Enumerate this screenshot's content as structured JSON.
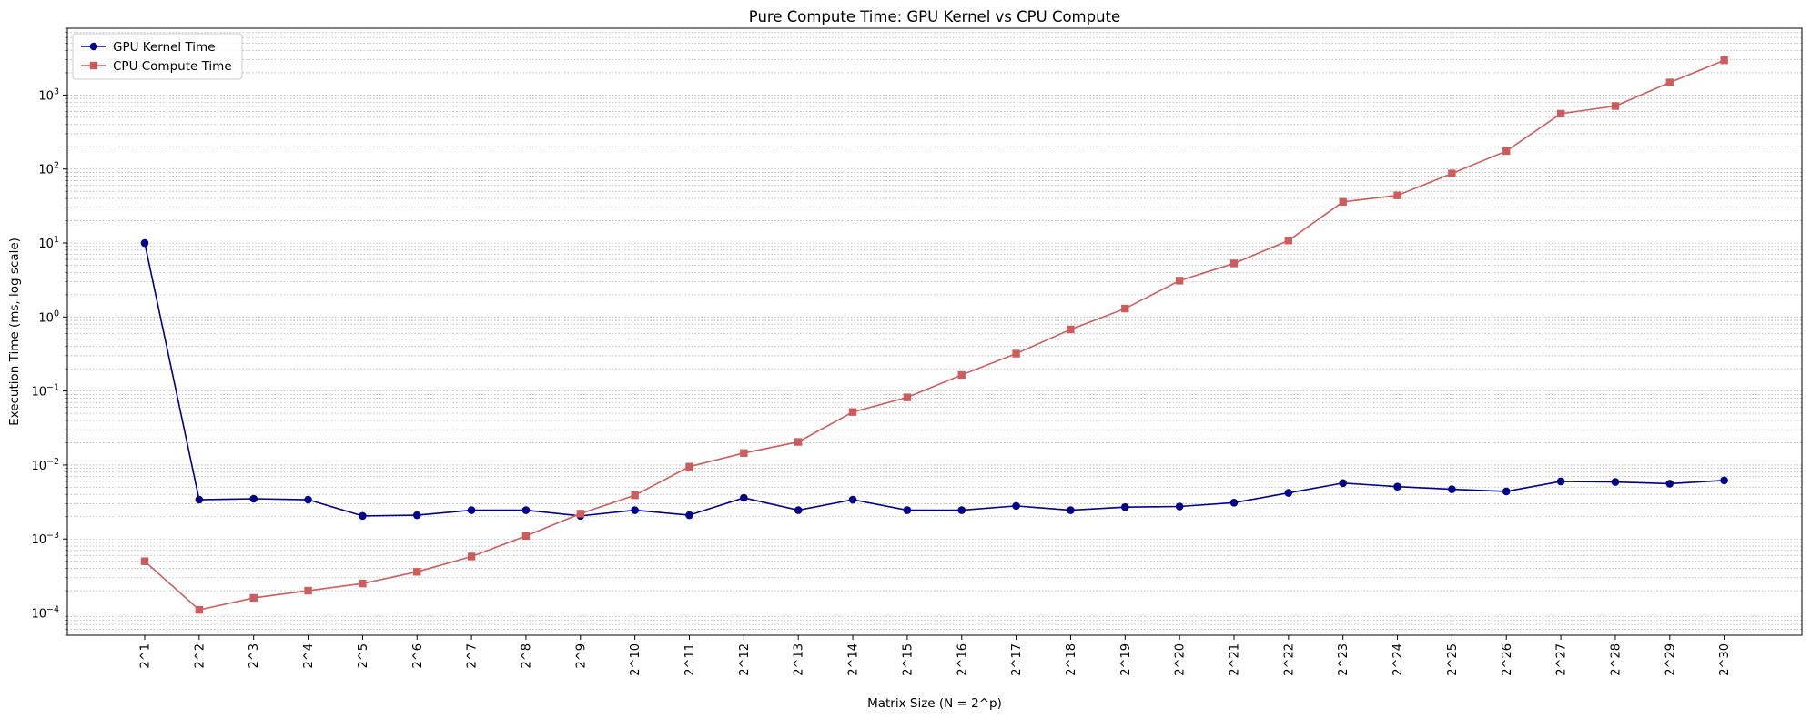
{
  "chart_data": {
    "type": "line",
    "title": "Pure Compute Time: GPU Kernel vs CPU Compute",
    "xlabel": "Matrix Size (N = 2^p)",
    "ylabel": "Execution Time (ms, log scale)",
    "yscale": "log",
    "ylim": [
      5e-05,
      8000
    ],
    "grid": true,
    "legend_position": "top-left",
    "categories": [
      "2^1",
      "2^2",
      "2^3",
      "2^4",
      "2^5",
      "2^6",
      "2^7",
      "2^8",
      "2^9",
      "2^10",
      "2^11",
      "2^12",
      "2^13",
      "2^14",
      "2^15",
      "2^16",
      "2^17",
      "2^18",
      "2^19",
      "2^20",
      "2^21",
      "2^22",
      "2^23",
      "2^24",
      "2^25",
      "2^26",
      "2^27",
      "2^28",
      "2^29",
      "2^30"
    ],
    "y_ticks": [
      {
        "value": 0.0001,
        "base": "10",
        "exp": "−4"
      },
      {
        "value": 0.001,
        "base": "10",
        "exp": "−3"
      },
      {
        "value": 0.01,
        "base": "10",
        "exp": "−2"
      },
      {
        "value": 0.1,
        "base": "10",
        "exp": "−1"
      },
      {
        "value": 1,
        "base": "10",
        "exp": "0"
      },
      {
        "value": 10,
        "base": "10",
        "exp": "1"
      },
      {
        "value": 100,
        "base": "10",
        "exp": "2"
      },
      {
        "value": 1000,
        "base": "10",
        "exp": "3"
      }
    ],
    "series": [
      {
        "name": "GPU Kernel Time",
        "color": "#00008b",
        "marker": "circle",
        "values": [
          10.0,
          0.0034,
          0.0035,
          0.0034,
          0.00205,
          0.0021,
          0.00245,
          0.00245,
          0.00205,
          0.00245,
          0.0021,
          0.0036,
          0.00245,
          0.0034,
          0.00245,
          0.00245,
          0.0028,
          0.00245,
          0.0027,
          0.00275,
          0.0031,
          0.0042,
          0.0057,
          0.0051,
          0.0047,
          0.0044,
          0.006,
          0.0059,
          0.0056,
          0.0062
        ]
      },
      {
        "name": "CPU Compute Time",
        "color": "#cd5c5c",
        "marker": "square",
        "values": [
          0.0005,
          0.00011,
          0.00016,
          0.0002,
          0.00025,
          0.00036,
          0.00058,
          0.0011,
          0.0022,
          0.0039,
          0.0095,
          0.0145,
          0.0205,
          0.052,
          0.082,
          0.165,
          0.32,
          0.68,
          1.3,
          3.1,
          5.3,
          10.8,
          36,
          44,
          87,
          175,
          560,
          710,
          1480,
          2950
        ]
      }
    ]
  }
}
